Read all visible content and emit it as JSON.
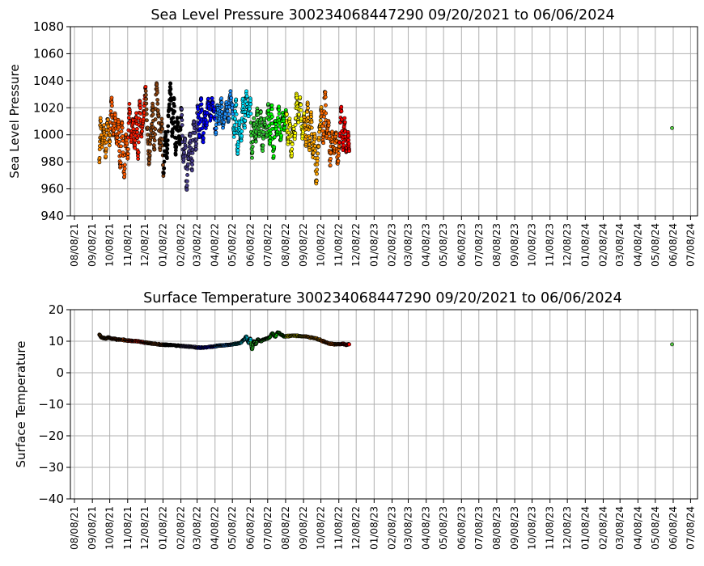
{
  "chart_data": [
    {
      "type": "scatter",
      "title": "Sea Level Pressure 300234068447290  09/20/2021 to 06/06/2024",
      "xlabel": "",
      "ylabel": "Sea Level Pressure",
      "ylim": [
        940,
        1080
      ],
      "yticks": [
        "940",
        "960",
        "980",
        "1000",
        "1020",
        "1040",
        "1060",
        "1080"
      ],
      "xlim": [
        "2021-08-01",
        "2024-07-20"
      ],
      "xticks": [
        "08/08/21",
        "09/08/21",
        "10/08/21",
        "11/08/21",
        "12/08/21",
        "01/08/22",
        "02/08/22",
        "03/08/22",
        "04/08/22",
        "05/08/22",
        "06/08/22",
        "07/08/22",
        "08/08/22",
        "09/08/22",
        "10/08/22",
        "11/08/22",
        "12/08/22",
        "01/08/23",
        "02/08/23",
        "03/08/23",
        "04/08/23",
        "05/08/23",
        "06/08/23",
        "07/08/23",
        "08/08/23",
        "09/08/23",
        "10/08/23",
        "11/08/23",
        "12/08/23",
        "01/08/24",
        "02/08/24",
        "03/08/24",
        "04/08/24",
        "05/08/24",
        "06/08/24",
        "07/08/24"
      ],
      "grid": true,
      "color_segments": [
        {
          "start": "2021-09-20",
          "end": "2021-10-08",
          "color": "#ff8c00"
        },
        {
          "start": "2021-10-08",
          "end": "2021-11-08",
          "color": "#ff5a00"
        },
        {
          "start": "2021-11-08",
          "end": "2021-12-08",
          "color": "#ff1a00"
        },
        {
          "start": "2021-12-08",
          "end": "2022-01-08",
          "color": "#8b4513"
        },
        {
          "start": "2022-01-08",
          "end": "2022-02-08",
          "color": "#000000"
        },
        {
          "start": "2022-02-08",
          "end": "2022-03-08",
          "color": "#483d8b"
        },
        {
          "start": "2022-03-08",
          "end": "2022-04-08",
          "color": "#0000ff"
        },
        {
          "start": "2022-04-08",
          "end": "2022-05-08",
          "color": "#1e90ff"
        },
        {
          "start": "2022-05-08",
          "end": "2022-06-08",
          "color": "#00e5ff"
        },
        {
          "start": "2022-06-08",
          "end": "2022-07-08",
          "color": "#32cd32"
        },
        {
          "start": "2022-07-08",
          "end": "2022-08-08",
          "color": "#00ff00"
        },
        {
          "start": "2022-08-08",
          "end": "2022-09-08",
          "color": "#ffff00"
        },
        {
          "start": "2022-09-08",
          "end": "2022-10-08",
          "color": "#ffa500"
        },
        {
          "start": "2022-10-08",
          "end": "2022-11-08",
          "color": "#ff6a00"
        },
        {
          "start": "2022-11-08",
          "end": "2022-11-26",
          "color": "#ff0000"
        },
        {
          "start": "2024-06-06",
          "end": "2024-06-06",
          "color": "#55cc44"
        }
      ],
      "points": [
        [
          "2021-09-20",
          980
        ],
        [
          "2021-09-22",
          1010
        ],
        [
          "2021-09-25",
          992
        ],
        [
          "2021-09-28",
          1005
        ],
        [
          "2021-10-01",
          985
        ],
        [
          "2021-10-04",
          1012
        ],
        [
          "2021-10-08",
          995
        ],
        [
          "2021-10-11",
          1025
        ],
        [
          "2021-10-14",
          1000
        ],
        [
          "2021-10-17",
          1015
        ],
        [
          "2021-10-20",
          995
        ],
        [
          "2021-10-23",
          1010
        ],
        [
          "2021-10-26",
          975
        ],
        [
          "2021-10-29",
          1008
        ],
        [
          "2021-11-02",
          970
        ],
        [
          "2021-11-05",
          1000
        ],
        [
          "2021-11-08",
          985
        ],
        [
          "2021-11-11",
          1020
        ],
        [
          "2021-11-14",
          995
        ],
        [
          "2021-11-17",
          1010
        ],
        [
          "2021-11-20",
          990
        ],
        [
          "2021-11-23",
          1015
        ],
        [
          "2021-11-26",
          985
        ],
        [
          "2021-11-29",
          1025
        ],
        [
          "2021-12-02",
          1000
        ],
        [
          "2021-12-06",
          1015
        ],
        [
          "2021-12-09",
          1035
        ],
        [
          "2021-12-12",
          1005
        ],
        [
          "2021-12-15",
          980
        ],
        [
          "2021-12-18",
          1000
        ],
        [
          "2021-12-21",
          1020
        ],
        [
          "2021-12-24",
          990
        ],
        [
          "2021-12-28",
          1037
        ],
        [
          "2021-12-31",
          1015
        ],
        [
          "2022-01-03",
          990
        ],
        [
          "2022-01-06",
          1010
        ],
        [
          "2022-01-09",
          970
        ],
        [
          "2022-01-12",
          1000
        ],
        [
          "2022-01-15",
          985
        ],
        [
          "2022-01-18",
          1020
        ],
        [
          "2022-01-21",
          1037
        ],
        [
          "2022-01-24",
          1000
        ],
        [
          "2022-01-27",
          1025
        ],
        [
          "2022-01-30",
          985
        ],
        [
          "2022-02-02",
          1010
        ],
        [
          "2022-02-06",
          995
        ],
        [
          "2022-02-09",
          1020
        ],
        [
          "2022-02-12",
          980
        ],
        [
          "2022-02-15",
          995
        ],
        [
          "2022-02-18",
          960
        ],
        [
          "2022-02-21",
          985
        ],
        [
          "2022-02-24",
          1000
        ],
        [
          "2022-02-27",
          975
        ],
        [
          "2022-03-02",
          1010
        ],
        [
          "2022-03-06",
          990
        ],
        [
          "2022-03-09",
          1020
        ],
        [
          "2022-03-12",
          1000
        ],
        [
          "2022-03-15",
          1028
        ],
        [
          "2022-03-18",
          995
        ],
        [
          "2022-03-21",
          1015
        ],
        [
          "2022-03-24",
          1005
        ],
        [
          "2022-03-27",
          1025
        ],
        [
          "2022-03-31",
          1012
        ],
        [
          "2022-04-03",
          1026
        ],
        [
          "2022-04-06",
          1018
        ],
        [
          "2022-04-09",
          1000
        ],
        [
          "2022-04-12",
          1020
        ],
        [
          "2022-04-15",
          1010
        ],
        [
          "2022-04-19",
          1025
        ],
        [
          "2022-04-22",
          1005
        ],
        [
          "2022-04-25",
          1015
        ],
        [
          "2022-04-28",
          1022
        ],
        [
          "2022-05-01",
          1010
        ],
        [
          "2022-05-04",
          1030
        ],
        [
          "2022-05-08",
          1020
        ],
        [
          "2022-05-11",
          1000
        ],
        [
          "2022-05-14",
          1025
        ],
        [
          "2022-05-17",
          985
        ],
        [
          "2022-05-20",
          1010
        ],
        [
          "2022-05-23",
          995
        ],
        [
          "2022-05-26",
          1025
        ],
        [
          "2022-05-29",
          1005
        ],
        [
          "2022-06-01",
          1030
        ],
        [
          "2022-06-04",
          1015
        ],
        [
          "2022-06-08",
          1025
        ],
        [
          "2022-06-11",
          985
        ],
        [
          "2022-06-14",
          1010
        ],
        [
          "2022-06-17",
          995
        ],
        [
          "2022-06-20",
          1018
        ],
        [
          "2022-06-23",
          1000
        ],
        [
          "2022-06-26",
          1015
        ],
        [
          "2022-06-29",
          990
        ],
        [
          "2022-07-02",
          1010
        ],
        [
          "2022-07-06",
          1000
        ],
        [
          "2022-07-09",
          1020
        ],
        [
          "2022-07-12",
          995
        ],
        [
          "2022-07-15",
          1022
        ],
        [
          "2022-07-18",
          985
        ],
        [
          "2022-07-21",
          1010
        ],
        [
          "2022-07-24",
          1000
        ],
        [
          "2022-07-27",
          1020
        ],
        [
          "2022-07-30",
          995
        ],
        [
          "2022-08-03",
          1015
        ],
        [
          "2022-08-06",
          1005
        ],
        [
          "2022-08-09",
          1018
        ],
        [
          "2022-08-12",
          995
        ],
        [
          "2022-08-15",
          1010
        ],
        [
          "2022-08-18",
          985
        ],
        [
          "2022-08-21",
          1005
        ],
        [
          "2022-08-24",
          1000
        ],
        [
          "2022-08-27",
          1030
        ],
        [
          "2022-08-30",
          1010
        ],
        [
          "2022-09-02",
          1025
        ],
        [
          "2022-09-06",
          1000
        ],
        [
          "2022-09-09",
          1015
        ],
        [
          "2022-09-12",
          995
        ],
        [
          "2022-09-15",
          1022
        ],
        [
          "2022-09-18",
          990
        ],
        [
          "2022-09-21",
          1015
        ],
        [
          "2022-09-24",
          985
        ],
        [
          "2022-09-27",
          1000
        ],
        [
          "2022-09-30",
          965
        ],
        [
          "2022-10-03",
          990
        ],
        [
          "2022-10-06",
          1005
        ],
        [
          "2022-10-09",
          1020
        ],
        [
          "2022-10-12",
          995
        ],
        [
          "2022-10-15",
          1032
        ],
        [
          "2022-10-18",
          1000
        ],
        [
          "2022-10-21",
          1010
        ],
        [
          "2022-10-24",
          980
        ],
        [
          "2022-10-27",
          1000
        ],
        [
          "2022-10-31",
          985
        ],
        [
          "2022-11-03",
          1002
        ],
        [
          "2022-11-06",
          980
        ],
        [
          "2022-11-09",
          995
        ],
        [
          "2022-11-12",
          1020
        ],
        [
          "2022-11-15",
          990
        ],
        [
          "2022-11-18",
          1010
        ],
        [
          "2022-11-21",
          985
        ],
        [
          "2022-11-24",
          1000
        ],
        [
          "2022-11-26",
          988
        ],
        [
          "2024-06-06",
          1005
        ]
      ]
    },
    {
      "type": "scatter",
      "title": "Surface Temperature 300234068447290  09/20/2021 to 06/06/2024",
      "xlabel": "",
      "ylabel": "Surface Temperature",
      "ylim": [
        -40,
        20
      ],
      "yticks": [
        "−40",
        "−30",
        "−20",
        "−10",
        "0",
        "10",
        "20"
      ],
      "xlim": [
        "2021-08-01",
        "2024-07-20"
      ],
      "xticks": [
        "08/08/21",
        "09/08/21",
        "10/08/21",
        "11/08/21",
        "12/08/21",
        "01/08/22",
        "02/08/22",
        "03/08/22",
        "04/08/22",
        "05/08/22",
        "06/08/22",
        "07/08/22",
        "08/08/22",
        "09/08/22",
        "10/08/22",
        "11/08/22",
        "12/08/22",
        "01/08/23",
        "02/08/23",
        "03/08/23",
        "04/08/23",
        "05/08/23",
        "06/08/23",
        "07/08/23",
        "08/08/23",
        "09/08/23",
        "10/08/23",
        "11/08/23",
        "12/08/23",
        "01/08/24",
        "02/08/24",
        "03/08/24",
        "04/08/24",
        "05/08/24",
        "06/08/24",
        "07/08/24"
      ],
      "grid": true,
      "points": [
        [
          "2021-09-20",
          12.0
        ],
        [
          "2021-09-24",
          11.2
        ],
        [
          "2021-09-28",
          11.0
        ],
        [
          "2021-10-02",
          10.9
        ],
        [
          "2021-10-06",
          11.2
        ],
        [
          "2021-10-10",
          10.8
        ],
        [
          "2021-10-15",
          10.8
        ],
        [
          "2021-10-20",
          10.6
        ],
        [
          "2021-10-25",
          10.5
        ],
        [
          "2021-11-01",
          10.4
        ],
        [
          "2021-11-08",
          10.2
        ],
        [
          "2021-11-15",
          10.1
        ],
        [
          "2021-11-22",
          10.0
        ],
        [
          "2021-12-01",
          9.8
        ],
        [
          "2021-12-08",
          9.6
        ],
        [
          "2021-12-15",
          9.4
        ],
        [
          "2021-12-22",
          9.2
        ],
        [
          "2022-01-01",
          9.0
        ],
        [
          "2022-01-08",
          8.9
        ],
        [
          "2022-01-15",
          8.8
        ],
        [
          "2022-01-22",
          8.8
        ],
        [
          "2022-02-01",
          8.6
        ],
        [
          "2022-02-08",
          8.5
        ],
        [
          "2022-02-15",
          8.4
        ],
        [
          "2022-02-22",
          8.3
        ],
        [
          "2022-03-01",
          8.2
        ],
        [
          "2022-03-08",
          8.0
        ],
        [
          "2022-03-15",
          8.0
        ],
        [
          "2022-03-22",
          8.0
        ],
        [
          "2022-04-01",
          8.2
        ],
        [
          "2022-04-08",
          8.4
        ],
        [
          "2022-04-15",
          8.6
        ],
        [
          "2022-04-22",
          8.7
        ],
        [
          "2022-05-01",
          8.8
        ],
        [
          "2022-05-08",
          9.0
        ],
        [
          "2022-05-15",
          9.2
        ],
        [
          "2022-05-22",
          9.5
        ],
        [
          "2022-05-28",
          10.5
        ],
        [
          "2022-06-01",
          11.5
        ],
        [
          "2022-06-05",
          9.5
        ],
        [
          "2022-06-08",
          10.8
        ],
        [
          "2022-06-11",
          7.5
        ],
        [
          "2022-06-14",
          10.0
        ],
        [
          "2022-06-17",
          9.0
        ],
        [
          "2022-06-21",
          10.5
        ],
        [
          "2022-06-26",
          10.0
        ],
        [
          "2022-07-01",
          10.5
        ],
        [
          "2022-07-06",
          10.8
        ],
        [
          "2022-07-11",
          11.2
        ],
        [
          "2022-07-16",
          12.5
        ],
        [
          "2022-07-21",
          11.5
        ],
        [
          "2022-07-26",
          12.8
        ],
        [
          "2022-08-01",
          12.0
        ],
        [
          "2022-08-06",
          11.5
        ],
        [
          "2022-08-12",
          11.6
        ],
        [
          "2022-08-20",
          11.8
        ],
        [
          "2022-08-28",
          11.7
        ],
        [
          "2022-09-05",
          11.5
        ],
        [
          "2022-09-12",
          11.5
        ],
        [
          "2022-09-20",
          11.2
        ],
        [
          "2022-09-28",
          11.0
        ],
        [
          "2022-10-05",
          10.5
        ],
        [
          "2022-10-12",
          10.0
        ],
        [
          "2022-10-18",
          9.5
        ],
        [
          "2022-10-24",
          9.2
        ],
        [
          "2022-11-01",
          9.0
        ],
        [
          "2022-11-08",
          9.0
        ],
        [
          "2022-11-15",
          9.2
        ],
        [
          "2022-11-20",
          8.9
        ],
        [
          "2022-11-26",
          9.0
        ],
        [
          "2024-06-06",
          9.0
        ]
      ]
    }
  ]
}
